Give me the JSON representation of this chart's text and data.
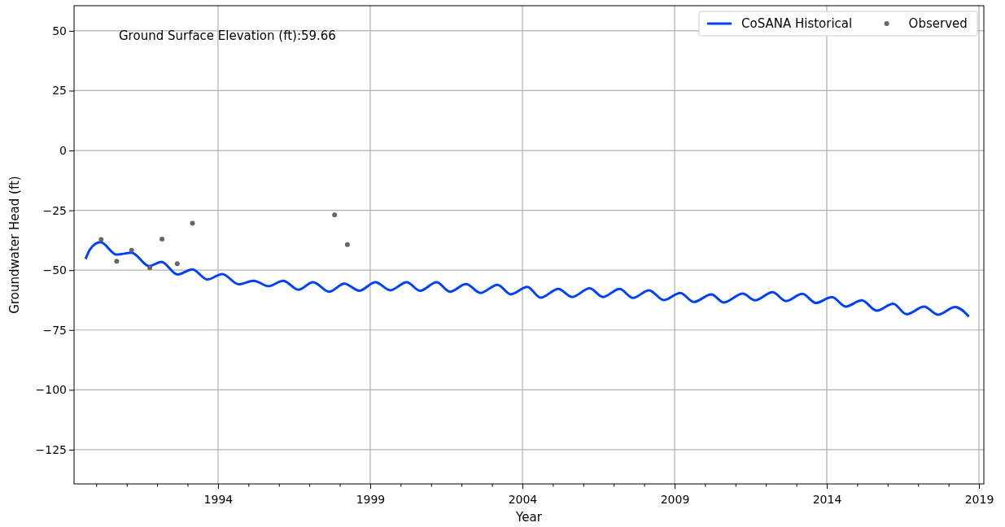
{
  "chart_data": {
    "type": "line",
    "xlabel": "Year",
    "ylabel": "Groundwater Head (ft)",
    "annotations": [
      "Ground Surface Elevation (ft):59.66"
    ],
    "xlim": [
      1989.27,
      2019.16
    ],
    "ylim": [
      -139.3,
      60.5
    ],
    "xticks": [
      {
        "value": 1990,
        "label": null
      },
      {
        "value": 1991,
        "label": null
      },
      {
        "value": 1992,
        "label": null
      },
      {
        "value": 1993,
        "label": null
      },
      1994,
      {
        "value": 1995,
        "label": null
      },
      {
        "value": 1996,
        "label": null
      },
      {
        "value": 1997,
        "label": null
      },
      {
        "value": 1998,
        "label": null
      },
      1999,
      {
        "value": 2000,
        "label": null
      },
      {
        "value": 2001,
        "label": null
      },
      {
        "value": 2002,
        "label": null
      },
      {
        "value": 2003,
        "label": null
      },
      2004,
      {
        "value": 2005,
        "label": null
      },
      {
        "value": 2006,
        "label": null
      },
      {
        "value": 2007,
        "label": null
      },
      {
        "value": 2008,
        "label": null
      },
      2009,
      {
        "value": 2010,
        "label": null
      },
      {
        "value": 2011,
        "label": null
      },
      {
        "value": 2012,
        "label": null
      },
      {
        "value": 2013,
        "label": null
      },
      2014,
      {
        "value": 2015,
        "label": null
      },
      {
        "value": 2016,
        "label": null
      },
      {
        "value": 2017,
        "label": null
      },
      {
        "value": 2018,
        "label": null
      },
      2019
    ],
    "yticks": [
      -125,
      -100,
      -75,
      -50,
      -25,
      0,
      25,
      50
    ],
    "grid": true,
    "legend": "top right",
    "series": [
      {
        "name": "CoSANA Historical",
        "type": "line",
        "color": "#0040ff",
        "marker": "none",
        "line_style": "solid",
        "x": [
          1989.65,
          1989.8,
          1990.14,
          1990.67,
          1991.16,
          1991.74,
          1992.14,
          1992.67,
          1993.16,
          1993.65,
          1994.14,
          1994.68,
          1995.17,
          1995.66,
          1996.14,
          1996.64,
          1997.12,
          1997.66,
          1998.15,
          1998.64,
          1999.17,
          1999.66,
          2000.2,
          2000.64,
          2001.18,
          2001.62,
          2002.15,
          2002.62,
          2003.18,
          2003.62,
          2004.16,
          2004.6,
          2005.18,
          2005.63,
          2006.21,
          2006.65,
          2007.19,
          2007.63,
          2008.16,
          2008.65,
          2009.19,
          2009.63,
          2010.21,
          2010.61,
          2011.24,
          2011.64,
          2012.22,
          2012.66,
          2013.2,
          2013.64,
          2014.17,
          2014.62,
          2015.15,
          2015.64,
          2016.18,
          2016.62,
          2017.2,
          2017.65,
          2018.22,
          2018.67
        ],
        "values": [
          -45.3,
          -41.2,
          -38.3,
          -43.5,
          -42.7,
          -48.3,
          -46.5,
          -51.8,
          -49.7,
          -53.9,
          -51.6,
          -55.9,
          -54.4,
          -56.7,
          -54.4,
          -58.2,
          -55.0,
          -59.0,
          -55.6,
          -58.6,
          -55.0,
          -58.4,
          -55.0,
          -58.6,
          -55.0,
          -59.0,
          -55.8,
          -59.5,
          -56.1,
          -60.1,
          -57.0,
          -61.5,
          -57.8,
          -61.2,
          -57.6,
          -61.2,
          -57.8,
          -61.6,
          -58.4,
          -62.5,
          -59.5,
          -63.3,
          -60.1,
          -63.5,
          -59.8,
          -62.6,
          -59.2,
          -62.9,
          -59.9,
          -63.7,
          -61.2,
          -65.2,
          -62.6,
          -66.9,
          -64.0,
          -68.4,
          -65.2,
          -68.6,
          -65.4,
          -69.4
        ]
      },
      {
        "name": "Observed",
        "type": "scatter",
        "color": "#666666",
        "marker": "circle",
        "x": [
          1990.16,
          1990.67,
          1991.16,
          1991.76,
          1992.16,
          1992.66,
          1993.16,
          1997.83,
          1998.25
        ],
        "values": [
          -37.2,
          -46.3,
          -41.7,
          -49.0,
          -37.0,
          -47.3,
          -30.4,
          -26.9,
          -39.3
        ]
      }
    ]
  }
}
